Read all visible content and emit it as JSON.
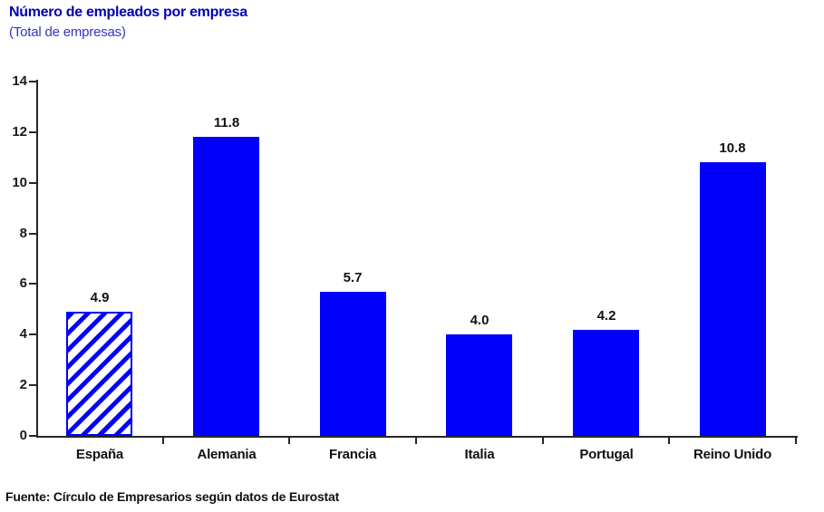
{
  "header": {
    "title": "Número de empleados por empresa",
    "subtitle": "(Total de empresas)"
  },
  "footer": {
    "source": "Fuente: Círculo de Empresarios según datos de Eurostat"
  },
  "colors": {
    "bar": "#0000FB",
    "title": "#0000B4",
    "subtitle": "#3333CC",
    "axis": "#262626"
  },
  "chart_data": {
    "type": "bar",
    "title": "Número de empleados por empresa",
    "subtitle": "(Total de empresas)",
    "categories": [
      "España",
      "Alemania",
      "Francia",
      "Italia",
      "Portugal",
      "Reino Unido"
    ],
    "values": [
      4.9,
      11.8,
      5.7,
      4.0,
      4.2,
      10.8
    ],
    "value_labels": [
      "4.9",
      "11.8",
      "5.7",
      "4.0",
      "4.2",
      "10.8"
    ],
    "hatched_category_index": 0,
    "xlabel": "",
    "ylabel": "",
    "ylim": [
      0,
      14
    ],
    "yticks": [
      0,
      2,
      4,
      6,
      8,
      10,
      12,
      14
    ],
    "grid": false,
    "legend": "none",
    "source": "Fuente: Círculo de Empresarios según datos de Eurostat"
  }
}
